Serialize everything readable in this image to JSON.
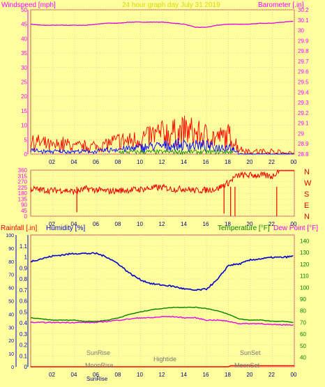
{
  "header": {
    "windspeed_label": "Windspeed [mph]",
    "title": "24 hour graph day   July 31 2019",
    "barometer_label": "Barometer [.in]"
  },
  "direction_labels": [
    "N",
    "W",
    "S",
    "E",
    "N"
  ],
  "bottom_header": {
    "rainfall_label": "Rainfall [.in]",
    "humidity_label": "Humidity [%]",
    "temperature_label": "Temperature [°F]",
    "dewpoint_label": "Dew Point [°F]"
  },
  "annotations": {
    "sunrise": "SunRise",
    "moonrise": "MoonRise",
    "sunrise_axis": "SunRise",
    "hightide": "Hightide",
    "sunset": "SunSet",
    "moonset": "MoonSet"
  },
  "colors": {
    "background": "#fefe9e",
    "axis_text": "#ff00ff",
    "wind_gust": "#ff0000",
    "wind_avg": "#0000ff",
    "wind_low": "#008000",
    "barometer": "#e000e0",
    "direction": "#ee0000",
    "humidity": "#0000cc",
    "temperature": "#008000",
    "dewpoint": "#ee00ee",
    "rain": "#ff0000"
  },
  "chart_data": [
    {
      "type": "line",
      "x_tick_labels": [
        "02",
        "04",
        "06",
        "08",
        "10",
        "12",
        "14",
        "16",
        "18",
        "20",
        "22",
        "00"
      ],
      "y_left_ticks": [
        0,
        5,
        10,
        15,
        20,
        25,
        30,
        35,
        40,
        45,
        50
      ],
      "y_right_ticks": [
        "28.8",
        "28.9",
        "29",
        "29.1",
        "29.2",
        "29.3",
        "29.4",
        "29.5",
        "29.6",
        "29.7",
        "29.8",
        "29.9",
        "30",
        "30.1",
        "30.2"
      ],
      "ylim": [
        0,
        50
      ],
      "y2lim": [
        28.8,
        30.2
      ],
      "grid": true,
      "series": [
        {
          "name": "Barometer",
          "axis": "right",
          "x": [
            0,
            1,
            2,
            3,
            4,
            5,
            6,
            7,
            8,
            9,
            10,
            11,
            12,
            13,
            14,
            15,
            16,
            17,
            18,
            19,
            20,
            21,
            22,
            23,
            24
          ],
          "values": [
            30.06,
            30.05,
            30.05,
            30.05,
            30.05,
            30.05,
            30.06,
            30.07,
            30.07,
            30.08,
            30.08,
            30.08,
            30.08,
            30.07,
            30.06,
            30.03,
            30.03,
            30.05,
            30.06,
            30.06,
            30.06,
            30.07,
            30.07,
            30.08,
            30.09
          ]
        },
        {
          "name": "Wind gust",
          "axis": "left",
          "x": [
            0,
            1,
            2,
            3,
            4,
            5,
            6,
            7,
            8,
            9,
            10,
            11,
            12,
            13,
            14,
            15,
            16,
            17,
            18,
            18.5,
            19,
            20,
            21,
            22,
            23,
            24
          ],
          "values": [
            5,
            4,
            3,
            4,
            3,
            3,
            3,
            4,
            5,
            5,
            6,
            7,
            8,
            8,
            9,
            8,
            7,
            6,
            7,
            5,
            2,
            1,
            1,
            1,
            0.5,
            0.5
          ]
        },
        {
          "name": "Wind average",
          "axis": "left",
          "x": [
            0,
            1,
            2,
            3,
            4,
            5,
            6,
            7,
            8,
            9,
            10,
            11,
            12,
            13,
            14,
            15,
            16,
            17,
            18,
            18.5,
            19,
            20,
            21,
            22,
            23,
            24
          ],
          "values": [
            1.5,
            1,
            1,
            1,
            1,
            1,
            1,
            1.5,
            2,
            2,
            2.5,
            3,
            3,
            3.5,
            3.5,
            3.5,
            3,
            2.5,
            3,
            2,
            0,
            0,
            0,
            0,
            0,
            0
          ]
        }
      ]
    },
    {
      "type": "line",
      "x_tick_labels": [
        "02",
        "04",
        "06",
        "08",
        "10",
        "12",
        "14",
        "16",
        "18",
        "20",
        "22",
        "00"
      ],
      "y_left_ticks": [
        0,
        45,
        90,
        135,
        180,
        225,
        270,
        315,
        360
      ],
      "ylim": [
        0,
        360
      ],
      "grid": true,
      "series": [
        {
          "name": "Wind direction",
          "x": [
            0,
            1,
            2,
            3,
            4,
            4.5,
            5,
            6,
            7,
            8,
            9,
            10,
            11,
            12,
            13,
            14,
            15,
            16,
            17,
            17.5,
            18,
            18.5,
            19,
            20,
            21,
            22,
            22.5,
            23,
            24
          ],
          "values": [
            215,
            205,
            200,
            205,
            190,
            200,
            215,
            205,
            195,
            200,
            205,
            210,
            220,
            225,
            210,
            215,
            200,
            205,
            215,
            240,
            260,
            300,
            320,
            320,
            320,
            310,
            355,
            355,
            360
          ]
        }
      ]
    },
    {
      "type": "line",
      "x_tick_labels": [
        "02",
        "04",
        "06",
        "08",
        "10",
        "12",
        "14",
        "16",
        "18",
        "20",
        "22",
        "00"
      ],
      "y_left_ticks": [
        0,
        0.1,
        0.2,
        0.3,
        0.4,
        0.5,
        0.6,
        0.7,
        0.8,
        0.9,
        1,
        1.1
      ],
      "y_left_tick_labels": [
        "0",
        "0.1",
        "0.2",
        "0.3",
        "0.4",
        "0.5",
        "0.6",
        "0.7",
        "0.8",
        "0.9",
        "1",
        "1.1"
      ],
      "y_outer_ticks": [
        0,
        10,
        20,
        30,
        40,
        50,
        60,
        70,
        80,
        90,
        100
      ],
      "y_right_ticks": [
        40,
        50,
        60,
        70,
        80,
        90,
        100,
        110,
        120,
        130,
        140
      ],
      "ylim": [
        0,
        1.2
      ],
      "y_outer_lim": [
        0,
        100
      ],
      "y2lim": [
        32,
        145
      ],
      "grid": true,
      "series": [
        {
          "name": "Humidity",
          "axis": "outer",
          "x": [
            0,
            1,
            2,
            3,
            4,
            5,
            6,
            7,
            8,
            9,
            10,
            11,
            12,
            13,
            14,
            15,
            16,
            17,
            18,
            19,
            20,
            21,
            22,
            23,
            24
          ],
          "values": [
            80,
            82,
            84,
            85,
            86,
            86,
            86,
            83,
            78,
            71,
            66,
            63,
            62,
            61,
            59,
            58,
            59,
            66,
            77,
            78,
            81,
            82,
            83,
            83,
            84
          ]
        },
        {
          "name": "Temperature",
          "axis": "right",
          "x": [
            0,
            1,
            2,
            3,
            4,
            5,
            6,
            7,
            8,
            9,
            10,
            11,
            12,
            13,
            14,
            15,
            16,
            17,
            18,
            19,
            20,
            21,
            22,
            23,
            24
          ],
          "values": [
            74,
            73,
            72,
            72,
            72,
            71,
            71,
            72,
            74,
            77,
            79,
            81,
            82,
            83,
            83,
            83,
            82,
            80,
            77,
            73,
            72,
            72,
            71,
            71,
            70
          ]
        },
        {
          "name": "Dew Point",
          "axis": "right",
          "x": [
            0,
            1,
            2,
            3,
            4,
            5,
            6,
            7,
            8,
            9,
            10,
            11,
            12,
            13,
            14,
            15,
            16,
            17,
            18,
            19,
            20,
            21,
            22,
            23,
            24
          ],
          "values": [
            70,
            70,
            70,
            70,
            70,
            70,
            70,
            71,
            72,
            73,
            74,
            74,
            75,
            75,
            74,
            74,
            72,
            72,
            71,
            69,
            69,
            69,
            68,
            68,
            68
          ]
        },
        {
          "name": "Rainfall",
          "axis": "left",
          "x": [
            0,
            18,
            18.2,
            24
          ],
          "values": [
            0,
            0,
            0.01,
            0.01
          ]
        }
      ]
    }
  ]
}
